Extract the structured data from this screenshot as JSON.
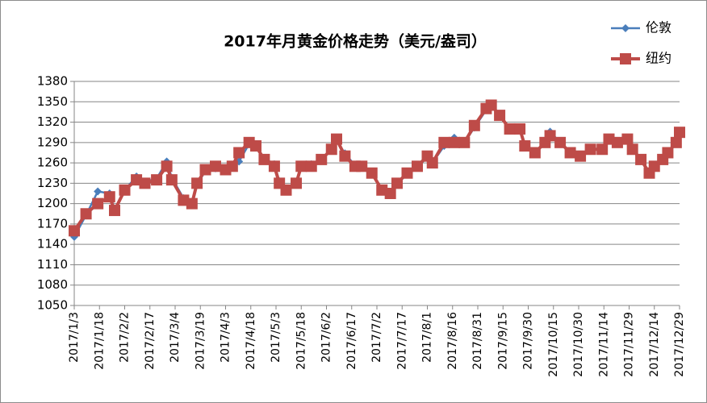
{
  "chart_data": {
    "type": "line",
    "title": "2017年月黄金价格走势（美元/盎司）",
    "x": [
      "2017/1/3",
      "2017/1/10",
      "2017/1/17",
      "2017/1/24",
      "2017/1/27",
      "2017/2/2",
      "2017/2/9",
      "2017/2/14",
      "2017/2/21",
      "2017/2/27",
      "2017/3/2",
      "2017/3/9",
      "2017/3/14",
      "2017/3/17",
      "2017/3/22",
      "2017/3/28",
      "2017/4/3",
      "2017/4/7",
      "2017/4/11",
      "2017/4/17",
      "2017/4/21",
      "2017/4/26",
      "2017/5/2",
      "2017/5/5",
      "2017/5/9",
      "2017/5/15",
      "2017/5/18",
      "2017/5/24",
      "2017/5/30",
      "2017/6/5",
      "2017/6/8",
      "2017/6/13",
      "2017/6/19",
      "2017/6/23",
      "2017/6/29",
      "2017/7/5",
      "2017/7/10",
      "2017/7/14",
      "2017/7/20",
      "2017/7/26",
      "2017/8/1",
      "2017/8/4",
      "2017/8/11",
      "2017/8/17",
      "2017/8/23",
      "2017/8/29",
      "2017/9/5",
      "2017/9/8",
      "2017/9/13",
      "2017/9/19",
      "2017/9/25",
      "2017/9/28",
      "2017/10/4",
      "2017/10/10",
      "2017/10/13",
      "2017/10/19",
      "2017/10/25",
      "2017/10/31",
      "2017/11/6",
      "2017/11/13",
      "2017/11/17",
      "2017/11/22",
      "2017/11/28",
      "2017/12/1",
      "2017/12/6",
      "2017/12/11",
      "2017/12/14",
      "2017/12/19",
      "2017/12/22",
      "2017/12/27",
      "2017/12/29"
    ],
    "series": [
      {
        "name": "伦敦",
        "color": "#4a7ebb",
        "marker": "diamond",
        "values": [
          1151,
          1183,
          1218,
          1215,
          1192,
          1220,
          1240,
          1232,
          1237,
          1262,
          1238,
          1208,
          1200,
          1228,
          1248,
          1252,
          1250,
          1256,
          1262,
          1288,
          1284,
          1267,
          1258,
          1233,
          1220,
          1228,
          1255,
          1258,
          1265,
          1280,
          1293,
          1274,
          1256,
          1253,
          1243,
          1222,
          1215,
          1228,
          1244,
          1254,
          1268,
          1260,
          1285,
          1297,
          1290,
          1312,
          1338,
          1346,
          1329,
          1311,
          1309,
          1286,
          1274,
          1290,
          1306,
          1290,
          1276,
          1272,
          1280,
          1281,
          1293,
          1289,
          1293,
          1282,
          1264,
          1246,
          1253,
          1264,
          1274,
          1289,
          1304
        ]
      },
      {
        "name": "纽约",
        "color": "#be4b48",
        "marker": "square",
        "values": [
          1160,
          1185,
          1200,
          1210,
          1190,
          1220,
          1235,
          1230,
          1235,
          1255,
          1235,
          1205,
          1200,
          1230,
          1250,
          1255,
          1250,
          1255,
          1275,
          1290,
          1285,
          1265,
          1255,
          1230,
          1220,
          1230,
          1255,
          1255,
          1265,
          1280,
          1295,
          1270,
          1255,
          1255,
          1245,
          1220,
          1215,
          1230,
          1245,
          1255,
          1270,
          1260,
          1290,
          1290,
          1290,
          1315,
          1340,
          1345,
          1330,
          1310,
          1310,
          1285,
          1275,
          1290,
          1300,
          1290,
          1275,
          1270,
          1280,
          1280,
          1295,
          1290,
          1295,
          1280,
          1265,
          1245,
          1255,
          1265,
          1275,
          1290,
          1305
        ]
      }
    ],
    "xlim": [
      "2017/1/3",
      "2017/12/29"
    ],
    "xticks": [
      "2017/1/3",
      "2017/1/18",
      "2017/2/2",
      "2017/2/17",
      "2017/3/4",
      "2017/3/19",
      "2017/4/3",
      "2017/4/18",
      "2017/5/3",
      "2017/5/18",
      "2017/6/2",
      "2017/6/17",
      "2017/7/2",
      "2017/7/17",
      "2017/8/1",
      "2017/8/16",
      "2017/8/31",
      "2017/9/15",
      "2017/9/30",
      "2017/10/15",
      "2017/10/30",
      "2017/11/14",
      "2017/11/29",
      "2017/12/14",
      "2017/12/29"
    ],
    "ylim": [
      1050,
      1380
    ],
    "yticks": [
      1050,
      1080,
      1110,
      1140,
      1170,
      1200,
      1230,
      1260,
      1290,
      1320,
      1350,
      1380
    ],
    "grid": true,
    "legend": "top-right"
  }
}
